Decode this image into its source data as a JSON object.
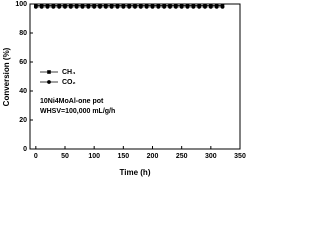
{
  "chart_data": {
    "type": "line",
    "xlabel": "Time (h)",
    "ylabel": "Conversion (%)",
    "annotations": [
      "10Ni4MoAl-one pot",
      "WHSV=100,000 mL/g/h"
    ],
    "x": [
      0,
      10,
      20,
      30,
      40,
      50,
      60,
      70,
      80,
      90,
      100,
      110,
      120,
      130,
      140,
      150,
      160,
      170,
      180,
      190,
      200,
      210,
      220,
      230,
      240,
      250,
      260,
      270,
      280,
      290,
      300,
      310,
      320
    ],
    "series": [
      {
        "name": "CH₄",
        "color": "#000000",
        "marker": "square",
        "values": [
          99,
          99,
          99,
          99,
          99,
          99,
          99,
          99,
          99,
          99,
          99,
          99,
          99,
          99,
          99,
          99,
          99,
          99,
          99,
          99,
          99,
          99,
          99,
          99,
          99,
          99,
          99,
          99,
          99,
          99,
          99,
          99,
          99
        ]
      },
      {
        "name": "CO₂",
        "color": "#000000",
        "marker": "circle",
        "values": [
          98,
          98,
          98,
          98,
          98,
          98,
          98,
          98,
          98,
          98,
          98,
          98,
          98,
          98,
          98,
          98,
          98,
          98,
          98,
          98,
          98,
          98,
          98,
          98,
          98,
          98,
          98,
          98,
          98,
          98,
          98,
          98,
          98
        ]
      }
    ],
    "xlim": [
      -10,
      350
    ],
    "ylim": [
      0,
      100
    ],
    "xticks": [
      0,
      50,
      100,
      150,
      200,
      250,
      300,
      350
    ],
    "yticks": [
      0,
      20,
      40,
      60,
      80,
      100
    ]
  }
}
